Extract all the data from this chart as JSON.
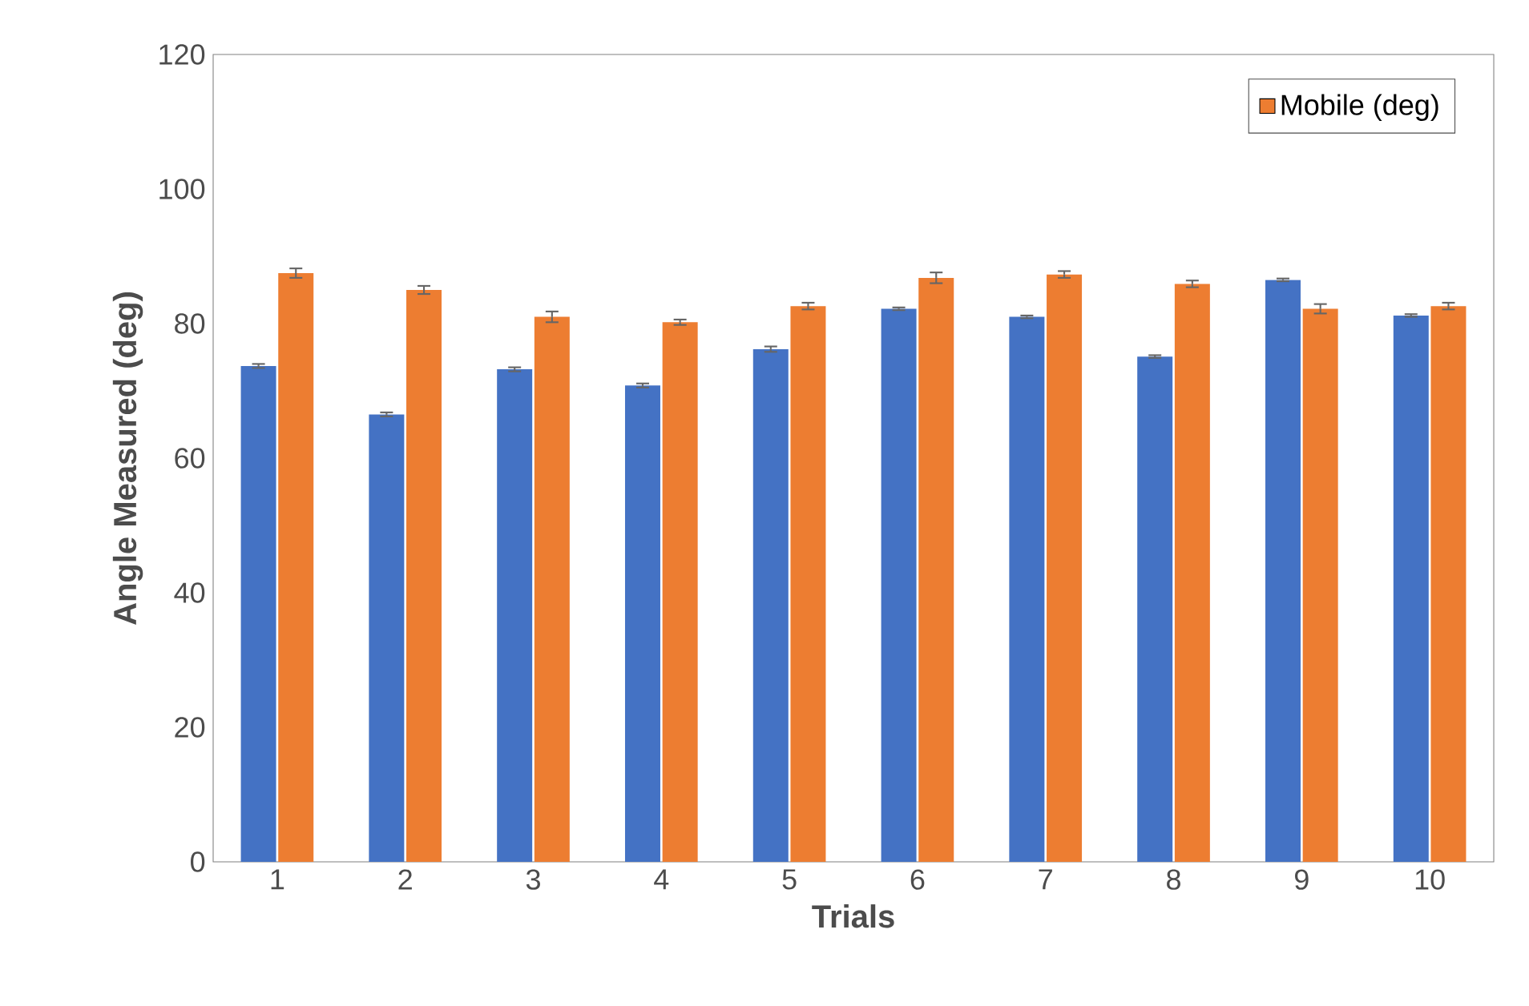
{
  "chart_data": {
    "type": "bar",
    "xlabel": "Trials",
    "ylabel": "Angle Measured (deg)",
    "categories": [
      "1",
      "2",
      "3",
      "4",
      "5",
      "6",
      "7",
      "8",
      "9",
      "10"
    ],
    "series": [
      {
        "color": "#4472c4",
        "values": [
          73.7,
          66.5,
          73.2,
          70.8,
          76.2,
          82.2,
          81.0,
          75.1,
          86.5,
          81.2
        ],
        "errors": [
          0.3,
          0.3,
          0.3,
          0.3,
          0.4,
          0.2,
          0.2,
          0.2,
          0.2,
          0.2
        ]
      },
      {
        "name": "Mobile (deg)",
        "color": "#ed7d31",
        "values": [
          87.5,
          85.0,
          81.0,
          80.2,
          82.6,
          86.8,
          87.3,
          85.9,
          82.2,
          82.6
        ],
        "errors": [
          0.7,
          0.6,
          0.8,
          0.4,
          0.5,
          0.8,
          0.5,
          0.5,
          0.7,
          0.5
        ]
      }
    ],
    "ylim": [
      0,
      120
    ],
    "yticks": [
      0,
      20,
      40,
      60,
      80,
      100,
      120
    ],
    "grid": false,
    "legend": "top right"
  }
}
